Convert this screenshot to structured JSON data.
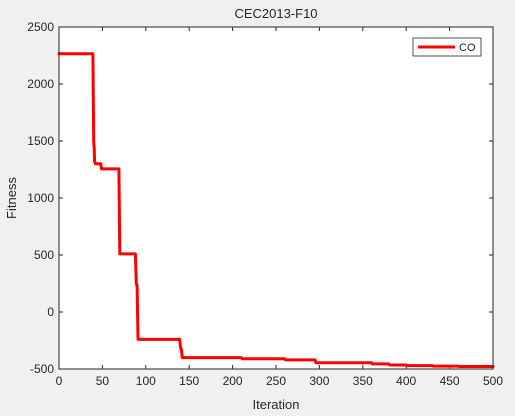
{
  "chart_data": {
    "type": "line",
    "title": "CEC2013-F10",
    "xlabel": "Iteration",
    "ylabel": "Fitness",
    "xlim": [
      0,
      500
    ],
    "ylim": [
      -500,
      2500
    ],
    "xticks": [
      0,
      50,
      100,
      150,
      200,
      250,
      300,
      350,
      400,
      450,
      500
    ],
    "yticks": [
      -500,
      0,
      500,
      1000,
      1500,
      2000,
      2500
    ],
    "grid": false,
    "legend_position": "top-right",
    "series": [
      {
        "name": "CO",
        "color": "#ff0000",
        "x": [
          0,
          39,
          40,
          40.5,
          41,
          42,
          48,
          49,
          58,
          69,
          70,
          88,
          89,
          90,
          91,
          92,
          139,
          140,
          141,
          142,
          210,
          211,
          260,
          261,
          295,
          296,
          360,
          361,
          380,
          381,
          400,
          401,
          430,
          431,
          460,
          461,
          500
        ],
        "y": [
          2265,
          2265,
          1490,
          1440,
          1320,
          1300,
          1300,
          1255,
          1255,
          1255,
          510,
          510,
          250,
          230,
          -240,
          -240,
          -240,
          -310,
          -330,
          -400,
          -400,
          -410,
          -410,
          -420,
          -420,
          -445,
          -445,
          -455,
          -455,
          -465,
          -465,
          -470,
          -470,
          -475,
          -475,
          -478,
          -478
        ]
      }
    ]
  }
}
